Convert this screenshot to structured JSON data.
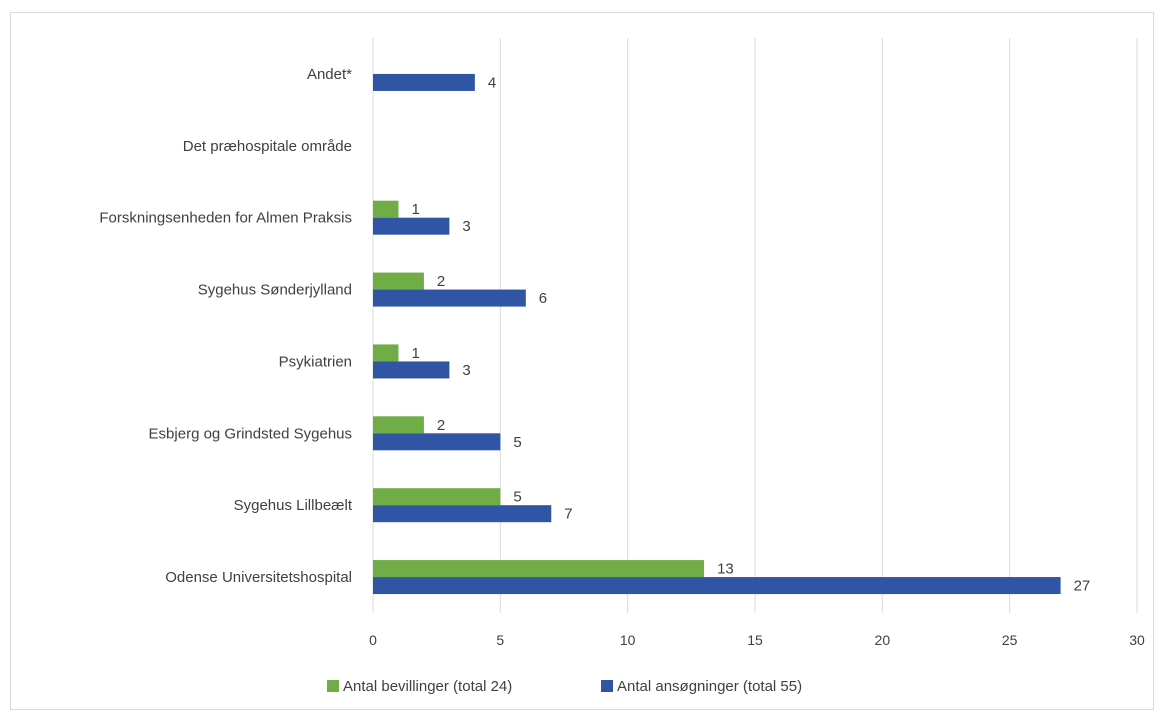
{
  "chart_data": {
    "type": "bar",
    "orientation": "horizontal",
    "categories": [
      "Andet*",
      "Det præhospitale område",
      "Forskningsenheden for Almen Praksis",
      "Sygehus Sønderjylland",
      "Psykiatrien",
      "Esbjerg og Grindsted Sygehus",
      "Sygehus Lillbeælt",
      "Odense Universitetshospital"
    ],
    "series": [
      {
        "name": "Antal bevillinger (total 24)",
        "color": "#70ad47",
        "values": [
          null,
          null,
          1,
          2,
          1,
          2,
          5,
          13
        ]
      },
      {
        "name": "Antal ansøgninger (total 55)",
        "color": "#2f55a4",
        "values": [
          4,
          null,
          3,
          6,
          3,
          5,
          7,
          27
        ]
      }
    ],
    "xlim": [
      0,
      30
    ],
    "xticks": [
      0,
      5,
      10,
      15,
      20,
      25,
      30
    ],
    "grid": "vertical",
    "legend": "bottom"
  }
}
